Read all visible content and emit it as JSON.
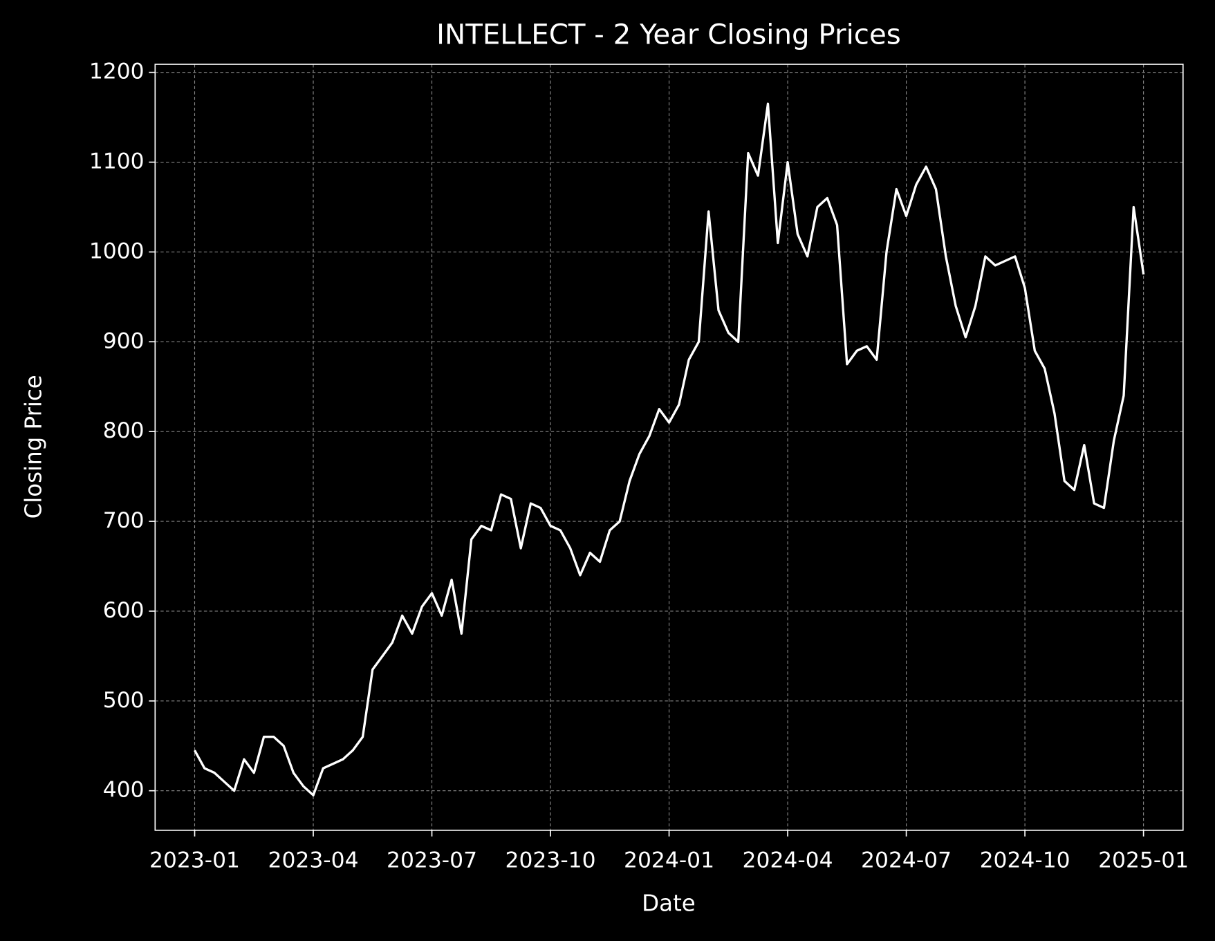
{
  "chart_data": {
    "type": "line",
    "title": "INTELLECT - 2 Year Closing Prices",
    "x_label": "Date",
    "y_label": "Closing Price",
    "color": "#ffffff",
    "grid": true,
    "x": [
      "2023-01",
      "2023-01",
      "2023-01",
      "2023-01",
      "2023-02",
      "2023-02",
      "2023-02",
      "2023-02",
      "2023-03",
      "2023-03",
      "2023-03",
      "2023-03",
      "2023-04",
      "2023-04",
      "2023-04",
      "2023-04",
      "2023-05",
      "2023-05",
      "2023-05",
      "2023-05",
      "2023-06",
      "2023-06",
      "2023-06",
      "2023-06",
      "2023-07",
      "2023-07",
      "2023-07",
      "2023-07",
      "2023-08",
      "2023-08",
      "2023-08",
      "2023-08",
      "2023-09",
      "2023-09",
      "2023-09",
      "2023-09",
      "2023-10",
      "2023-10",
      "2023-10",
      "2023-10",
      "2023-11",
      "2023-11",
      "2023-11",
      "2023-11",
      "2023-12",
      "2023-12",
      "2023-12",
      "2023-12",
      "2024-01",
      "2024-01",
      "2024-01",
      "2024-01",
      "2024-02",
      "2024-02",
      "2024-02",
      "2024-02",
      "2024-03",
      "2024-03",
      "2024-03",
      "2024-03",
      "2024-04",
      "2024-04",
      "2024-04",
      "2024-04",
      "2024-05",
      "2024-05",
      "2024-05",
      "2024-05",
      "2024-06",
      "2024-06",
      "2024-06",
      "2024-06",
      "2024-07",
      "2024-07",
      "2024-07",
      "2024-07",
      "2024-08",
      "2024-08",
      "2024-08",
      "2024-08",
      "2024-09",
      "2024-09",
      "2024-09",
      "2024-09",
      "2024-10",
      "2024-10",
      "2024-10",
      "2024-10",
      "2024-11",
      "2024-11",
      "2024-11",
      "2024-11",
      "2024-12",
      "2024-12",
      "2024-12",
      "2024-12",
      "2025-01"
    ],
    "values": [
      445,
      425,
      420,
      410,
      400,
      435,
      420,
      460,
      460,
      450,
      420,
      405,
      395,
      425,
      430,
      435,
      445,
      460,
      535,
      550,
      565,
      595,
      575,
      605,
      620,
      595,
      635,
      575,
      680,
      695,
      690,
      730,
      725,
      670,
      720,
      715,
      695,
      690,
      670,
      640,
      665,
      655,
      690,
      700,
      745,
      775,
      795,
      825,
      810,
      830,
      880,
      900,
      1045,
      935,
      910,
      900,
      1110,
      1085,
      1165,
      1010,
      1100,
      1020,
      995,
      1050,
      1060,
      1030,
      875,
      890,
      895,
      880,
      1000,
      1070,
      1040,
      1075,
      1095,
      1070,
      995,
      940,
      905,
      940,
      995,
      985,
      990,
      995,
      960,
      890,
      870,
      820,
      745,
      735,
      785,
      720,
      715,
      790,
      840,
      1050,
      975
    ],
    "xlim": [
      "2022-12",
      "2025-02"
    ],
    "xticks": [
      "2023-01",
      "2023-04",
      "2023-07",
      "2023-10",
      "2024-01",
      "2024-04",
      "2024-07",
      "2024-10",
      "2025-01"
    ],
    "ylim": [
      356,
      1209
    ],
    "yticks": [
      400,
      500,
      600,
      700,
      800,
      900,
      1000,
      1100,
      1200
    ]
  }
}
